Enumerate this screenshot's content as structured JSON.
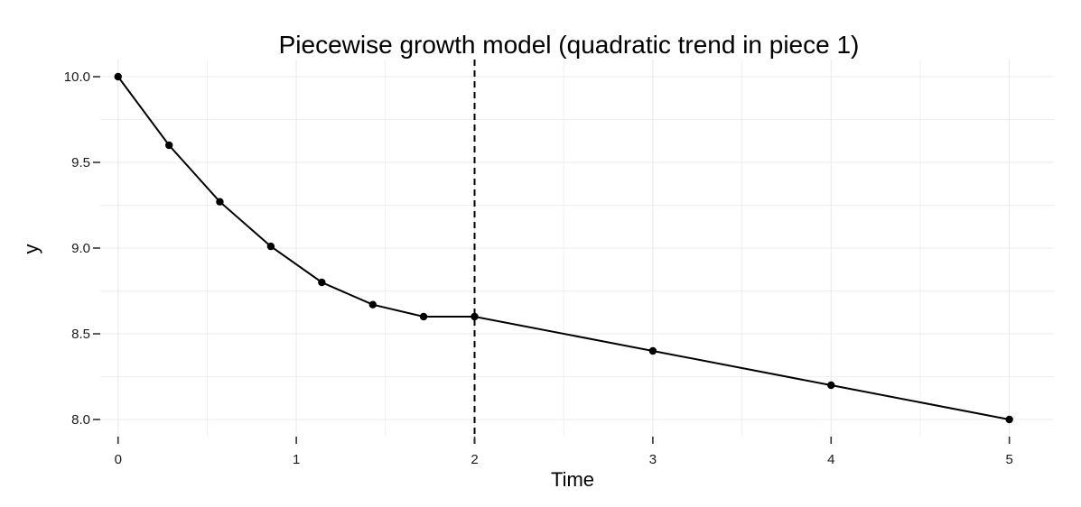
{
  "chart_data": {
    "type": "line",
    "title": "Piecewise growth model (quadratic trend in piece 1)",
    "xlabel": "Time",
    "ylabel": "y",
    "xlim": [
      -0.1,
      5.25
    ],
    "ylim": [
      7.9,
      10.1
    ],
    "x_ticks": [
      0,
      1,
      2,
      3,
      4,
      5
    ],
    "x_tick_labels": [
      "0",
      "1",
      "2",
      "3",
      "4",
      "5"
    ],
    "y_ticks": [
      8.0,
      8.5,
      9.0,
      9.5,
      10.0
    ],
    "y_tick_labels": [
      "8.0",
      "8.5",
      "9.0",
      "9.5",
      "10.0"
    ],
    "grid": true,
    "series": [
      {
        "x": [
          0,
          0.286,
          0.571,
          0.857,
          1.143,
          1.429,
          1.714,
          2,
          3,
          4,
          5
        ],
        "values": [
          10.0,
          9.6,
          9.27,
          9.01,
          8.8,
          8.67,
          8.6,
          8.6,
          8.4,
          8.2,
          8.0
        ]
      }
    ],
    "reference_line": {
      "x": 2,
      "style": "dashed"
    },
    "colors": {
      "line": "#000000",
      "grid": "#ebebeb",
      "background": "#ffffff"
    }
  }
}
